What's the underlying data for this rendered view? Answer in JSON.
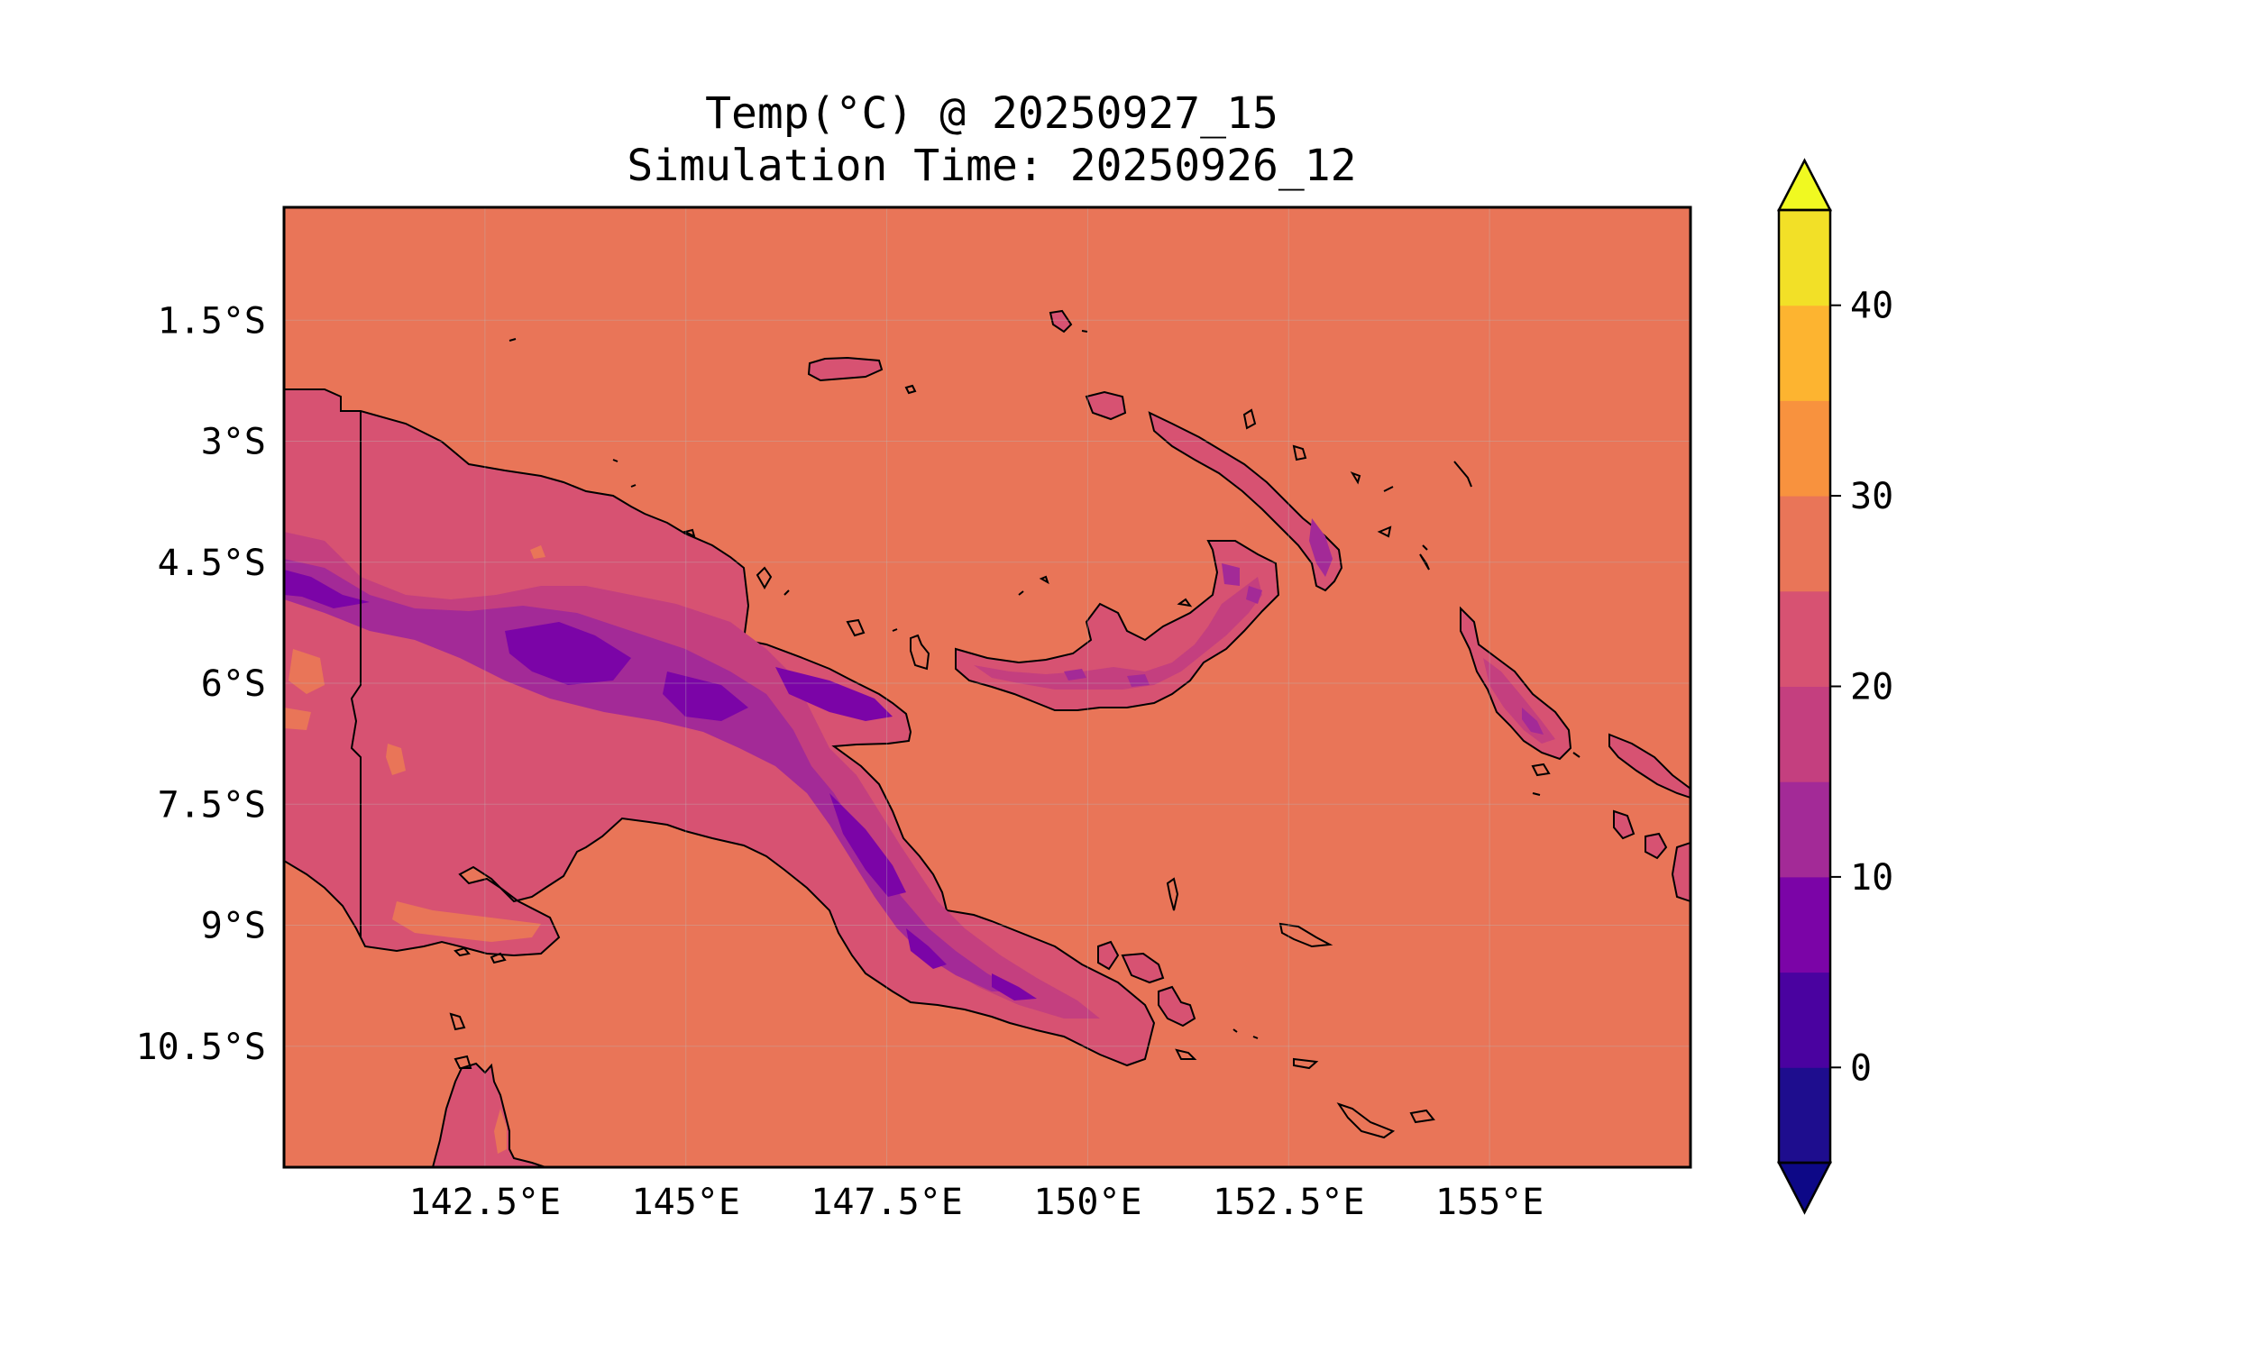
{
  "title": {
    "line1": "Temp(°C) @ 20250927_15",
    "line2": "Simulation Time: 20250926_12"
  },
  "map": {
    "variable": "Temperature (°C)",
    "projection": "PlateCarree",
    "extent": {
      "lon": [
        140.0,
        157.5
      ],
      "lat": [
        -12.0,
        -0.1
      ]
    },
    "x_ticks": [
      {
        "value": 142.5,
        "label": "142.5°E"
      },
      {
        "value": 145.0,
        "label": "145°E"
      },
      {
        "value": 147.5,
        "label": "147.5°E"
      },
      {
        "value": 150.0,
        "label": "150°E"
      },
      {
        "value": 152.5,
        "label": "152.5°E"
      },
      {
        "value": 155.0,
        "label": "155°E"
      }
    ],
    "y_ticks": [
      {
        "value": -1.5,
        "label": "1.5°S"
      },
      {
        "value": -3.0,
        "label": "3°S"
      },
      {
        "value": -4.5,
        "label": "4.5°S"
      },
      {
        "value": -6.0,
        "label": "6°S"
      },
      {
        "value": -7.5,
        "label": "7.5°S"
      },
      {
        "value": -9.0,
        "label": "9°S"
      },
      {
        "value": -10.5,
        "label": "10.5°S"
      }
    ],
    "gridlines": true,
    "ocean_color": "#e97558",
    "coastline_color": "#000000",
    "border_color": "#000000"
  },
  "colorbar": {
    "cmap": "plasma",
    "levels": [
      -5,
      0,
      5,
      10,
      15,
      20,
      25,
      30,
      35,
      40,
      45
    ],
    "extend": "both",
    "tick_values": [
      0,
      10,
      20,
      30,
      40
    ],
    "tick_labels": [
      "0",
      "10",
      "20",
      "30",
      "40"
    ],
    "colors": [
      "#1e0d8e",
      "#4a02a0",
      "#7b04a7",
      "#a32a97",
      "#c43f7f",
      "#d75272",
      "#e97558",
      "#f8923e",
      "#fdb430",
      "#f2e027"
    ],
    "under_color": "#0d0887",
    "over_color": "#f0f921"
  }
}
